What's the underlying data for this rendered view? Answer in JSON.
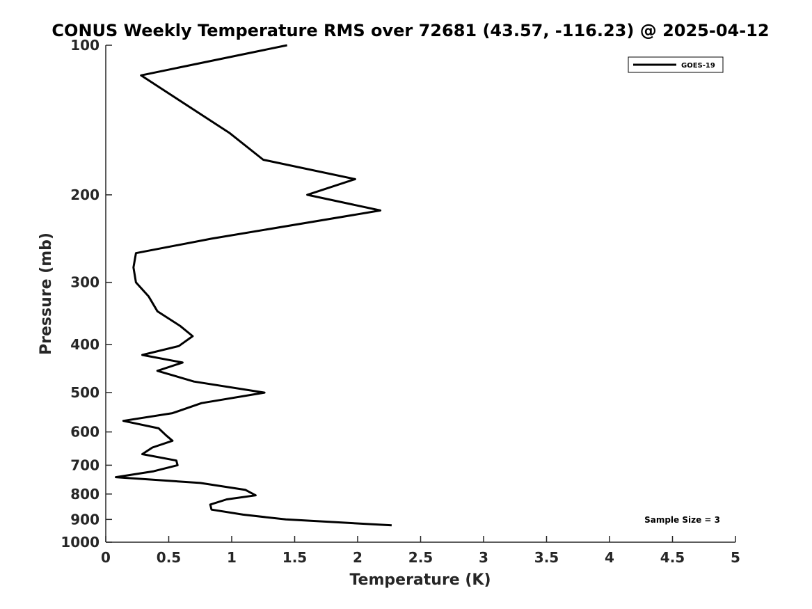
{
  "chart_data": {
    "type": "line",
    "title": "CONUS Weekly Temperature RMS over 72681 (43.57, -116.23) @ 2025-04-12",
    "xlabel": "Temperature (K)",
    "ylabel": "Pressure (mb)",
    "xlim": [
      0,
      5
    ],
    "ylim": [
      1000,
      100
    ],
    "y_scale": "log",
    "x_ticks": [
      0,
      0.5,
      1,
      1.5,
      2,
      2.5,
      3,
      3.5,
      4,
      4.5,
      5
    ],
    "x_tick_labels": [
      "0",
      "0.5",
      "1",
      "1.5",
      "2",
      "2.5",
      "3",
      "3.5",
      "4",
      "4.5",
      "5"
    ],
    "y_ticks": [
      100,
      200,
      300,
      400,
      500,
      600,
      700,
      800,
      900,
      1000
    ],
    "y_tick_labels": [
      "100",
      "200",
      "300",
      "400",
      "500",
      "600",
      "700",
      "800",
      "900",
      "1000"
    ],
    "grid": false,
    "legend_position": "top-right",
    "line_color": "#000000",
    "series": [
      {
        "name": "GOES-19",
        "x": [
          1.44,
          0.28,
          0.98,
          1.25,
          1.98,
          1.6,
          2.18,
          0.84,
          0.24,
          0.22,
          0.24,
          0.34,
          0.41,
          0.59,
          0.69,
          0.58,
          0.29,
          0.61,
          0.41,
          0.7,
          1.26,
          0.76,
          0.53,
          0.14,
          0.42,
          0.48,
          0.53,
          0.37,
          0.29,
          0.56,
          0.57,
          0.38,
          0.08,
          0.75,
          1.11,
          1.19,
          0.96,
          0.83,
          0.84,
          1.09,
          1.43,
          2.27
        ],
        "y": [
          100,
          115,
          150,
          170,
          186,
          200,
          215,
          245,
          262,
          280,
          300,
          320,
          343,
          367,
          385,
          403,
          420,
          435,
          452,
          475,
          500,
          525,
          550,
          570,
          590,
          610,
          625,
          645,
          665,
          685,
          700,
          720,
          740,
          760,
          785,
          805,
          820,
          840,
          860,
          880,
          900,
          925
        ]
      }
    ],
    "annotation": "Sample Size = 3"
  }
}
